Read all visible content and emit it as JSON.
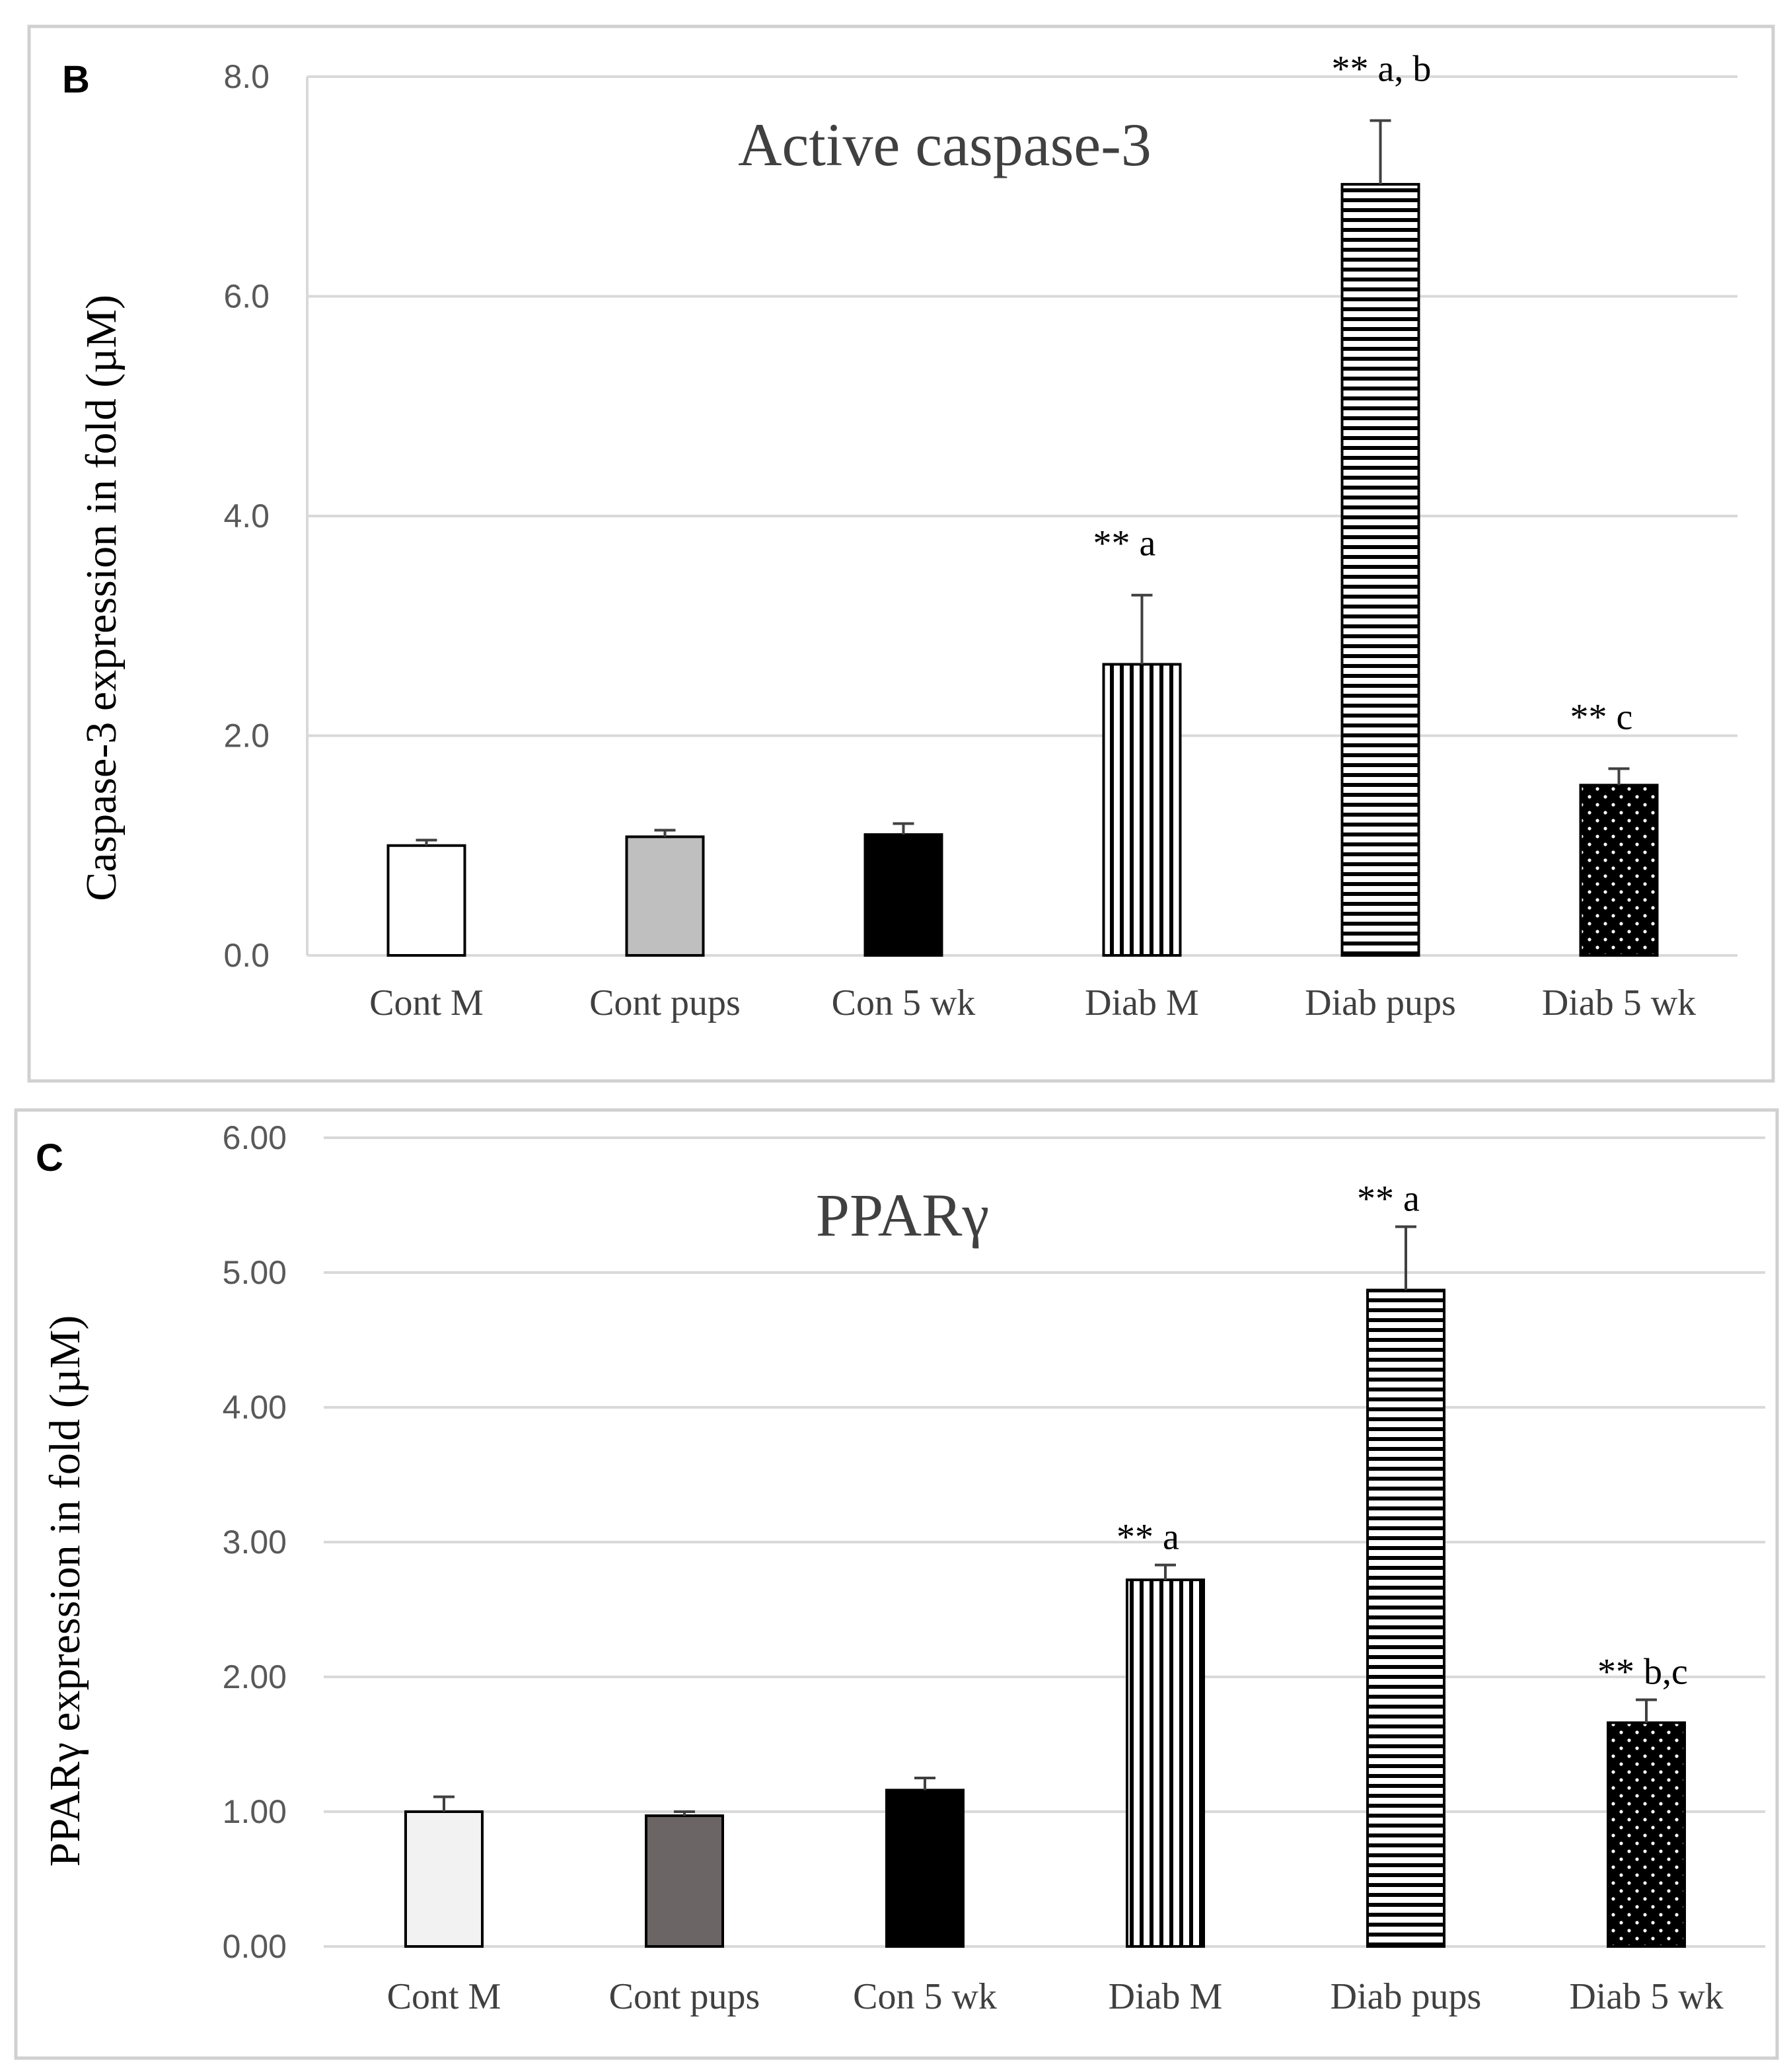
{
  "chart_data": [
    {
      "panel": "B",
      "type": "bar",
      "title": "Active caspase-3",
      "ylabel": "Caspase-3 expression in fold (µM)",
      "xlabel": "",
      "ylim": [
        0,
        8
      ],
      "yticks": [
        "0.0",
        "2.0",
        "4.0",
        "6.0",
        "8.0"
      ],
      "ytick_values": [
        0,
        2,
        4,
        6,
        8
      ],
      "categories": [
        "Cont M",
        "Cont pups",
        "Con 5 wk",
        "Diab M",
        "Diab pups",
        "Diab 5 wk"
      ],
      "values": [
        1.0,
        1.08,
        1.1,
        2.65,
        7.02,
        1.55
      ],
      "errors": [
        0.05,
        0.06,
        0.1,
        0.63,
        0.58,
        0.15
      ],
      "fills": [
        "white",
        "lightgray",
        "black",
        "vstripe",
        "hstripe",
        "dots"
      ],
      "annotations": [
        "",
        "",
        "",
        "** a",
        "** a, b",
        "** c"
      ],
      "grid": true
    },
    {
      "panel": "C",
      "type": "bar",
      "title": "PPARγ",
      "ylabel": "PPARγ expression in fold (µM)",
      "xlabel": "",
      "ylim": [
        0,
        6
      ],
      "yticks": [
        "0.00",
        "1.00",
        "2.00",
        "3.00",
        "4.00",
        "5.00",
        "6.00"
      ],
      "ytick_values": [
        0,
        1,
        2,
        3,
        4,
        5,
        6
      ],
      "categories": [
        "Cont M",
        "Cont pups",
        "Con 5 wk",
        "Diab M",
        "Diab pups",
        "Diab 5 wk"
      ],
      "values": [
        1.0,
        0.97,
        1.16,
        2.72,
        4.87,
        1.66
      ],
      "errors": [
        0.11,
        0.03,
        0.09,
        0.11,
        0.47,
        0.17
      ],
      "fills": [
        "offwhite",
        "darkgray",
        "black",
        "vstripe",
        "hstripe",
        "dots"
      ],
      "annotations": [
        "",
        "",
        "",
        "** a",
        "** a",
        "** b,c"
      ],
      "grid": true
    }
  ],
  "colors": {
    "light_gray_bar": "#bfbfbf",
    "dark_gray_bar": "#6b6565",
    "offwhite_bar": "#f2f2f2",
    "gridline": "#d9d9d9",
    "frame": "#d0d0d0"
  }
}
